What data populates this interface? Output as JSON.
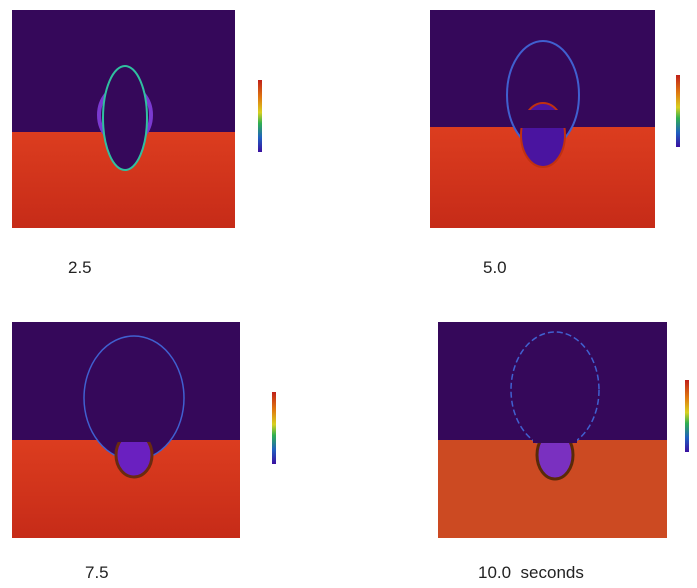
{
  "panels": [
    {
      "caption": "2.5"
    },
    {
      "caption": "5.0"
    },
    {
      "caption": "7.5"
    },
    {
      "caption": "10.0  seconds"
    }
  ]
}
